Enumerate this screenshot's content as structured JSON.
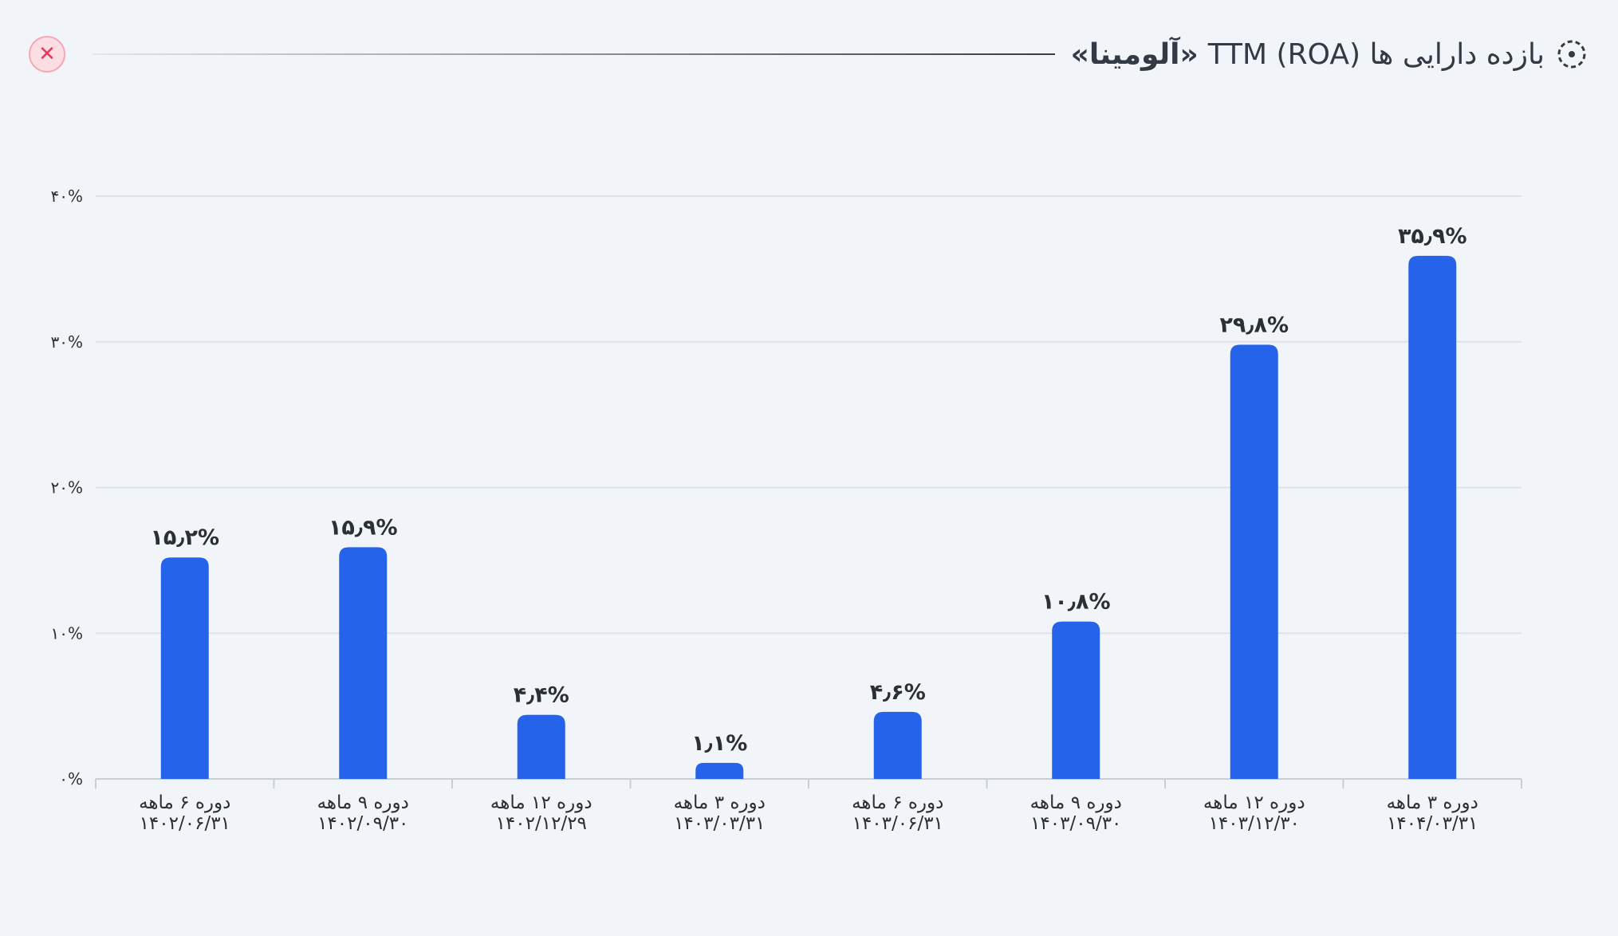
{
  "header": {
    "title_prefix": "بازده دارایی ها TTM (ROA)",
    "title_name": "«آلومینا»"
  },
  "colors": {
    "bar": "#2563eb",
    "grid": "#dde2ea",
    "axis": "#c9ced6",
    "text": "#2b2f36"
  },
  "chart_data": {
    "type": "bar",
    "categories": [
      {
        "period": "دوره ۶ ماهه",
        "date": "۱۴۰۲/۰۶/۳۱"
      },
      {
        "period": "دوره ۹ ماهه",
        "date": "۱۴۰۲/۰۹/۳۰"
      },
      {
        "period": "دوره ۱۲ ماهه",
        "date": "۱۴۰۲/۱۲/۲۹"
      },
      {
        "period": "دوره ۳ ماهه",
        "date": "۱۴۰۳/۰۳/۳۱"
      },
      {
        "period": "دوره ۶ ماهه",
        "date": "۱۴۰۳/۰۶/۳۱"
      },
      {
        "period": "دوره ۹ ماهه",
        "date": "۱۴۰۳/۰۹/۳۰"
      },
      {
        "period": "دوره ۱۲ ماهه",
        "date": "۱۴۰۳/۱۲/۳۰"
      },
      {
        "period": "دوره ۳ ماهه",
        "date": "۱۴۰۴/۰۳/۳۱"
      }
    ],
    "values": [
      15.2,
      15.9,
      4.4,
      1.1,
      4.6,
      10.8,
      29.8,
      35.9
    ],
    "value_labels": [
      "۱۵٫۲%",
      "۱۵٫۹%",
      "۴٫۴%",
      "۱٫۱%",
      "۴٫۶%",
      "۱۰٫۸%",
      "۲۹٫۸%",
      "۳۵٫۹%"
    ],
    "ylim": [
      0,
      40
    ],
    "yticks": [
      0,
      10,
      20,
      30,
      40
    ],
    "ytick_labels": [
      "۰%",
      "۱۰%",
      "۲۰%",
      "۳۰%",
      "۴۰%"
    ],
    "grid": true
  }
}
